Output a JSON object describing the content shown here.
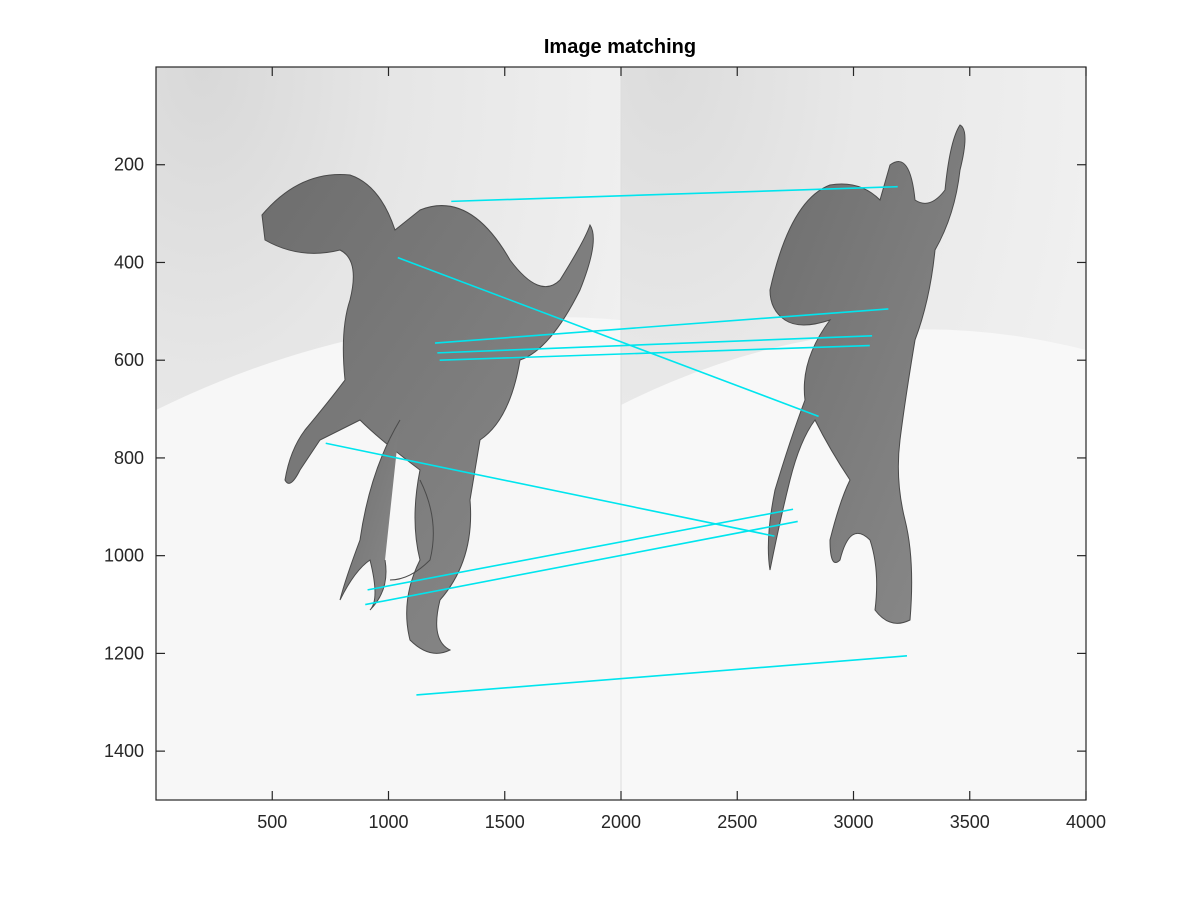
{
  "chart_data": {
    "type": "image",
    "title": "Image matching",
    "xlabel": "",
    "ylabel": "",
    "xlim": [
      0,
      4000
    ],
    "ylim": [
      0,
      1500
    ],
    "y_reversed": true,
    "x_ticks": [
      500,
      1000,
      1500,
      2000,
      2500,
      3000,
      3500,
      4000
    ],
    "y_ticks": [
      200,
      400,
      600,
      800,
      1000,
      1200,
      1400
    ],
    "grid": false,
    "legend": "none",
    "line_color": "#00e5ee",
    "image_split_x": 2000,
    "match_lines": [
      {
        "x1": 1270,
        "y1": 275,
        "x2": 3190,
        "y2": 245
      },
      {
        "x1": 1040,
        "y1": 390,
        "x2": 2850,
        "y2": 715
      },
      {
        "x1": 1200,
        "y1": 565,
        "x2": 3150,
        "y2": 495
      },
      {
        "x1": 1210,
        "y1": 585,
        "x2": 3080,
        "y2": 550
      },
      {
        "x1": 1220,
        "y1": 600,
        "x2": 3070,
        "y2": 570
      },
      {
        "x1": 730,
        "y1": 770,
        "x2": 2660,
        "y2": 960
      },
      {
        "x1": 910,
        "y1": 1070,
        "x2": 2740,
        "y2": 905
      },
      {
        "x1": 900,
        "y1": 1100,
        "x2": 2760,
        "y2": 930
      },
      {
        "x1": 1120,
        "y1": 1285,
        "x2": 3230,
        "y2": 1205
      }
    ]
  }
}
